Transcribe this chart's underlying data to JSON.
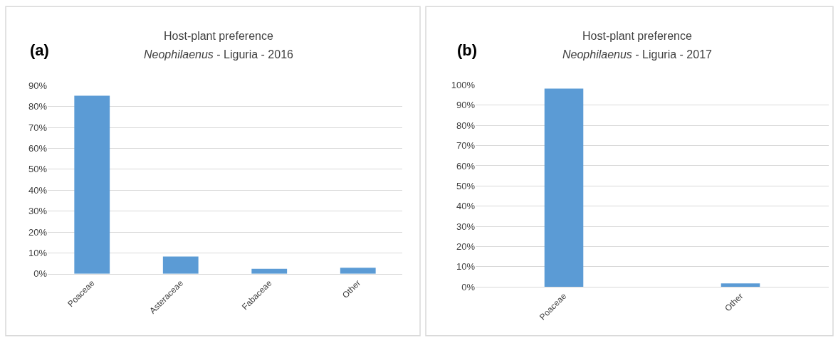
{
  "chart_data": [
    {
      "type": "bar",
      "title": "Host-plant preference",
      "subtitle": "Neophilaenus - Liguria - 2016",
      "annotations": [
        "(a)"
      ],
      "categories": [
        "Poaceae",
        "Asteraceae",
        "Fabaceae",
        "Other"
      ],
      "values": [
        85.2,
        8.3,
        2.4,
        2.9
      ],
      "color": "#5b9bd5",
      "ylim": [
        0,
        90
      ],
      "yticks": [
        {
          "value": 0,
          "label": "0%"
        },
        {
          "value": 10,
          "label": "10%"
        },
        {
          "value": 20,
          "label": "20%"
        },
        {
          "value": 30,
          "label": "30%"
        },
        {
          "value": 40,
          "label": "40%"
        },
        {
          "value": 50,
          "label": "50%"
        },
        {
          "value": 60,
          "label": "60%"
        },
        {
          "value": 70,
          "label": "70%"
        },
        {
          "value": 80,
          "label": "80%"
        },
        {
          "value": 90,
          "label": "90%"
        }
      ],
      "grid": "y"
    },
    {
      "type": "bar",
      "title": "Host-plant preference",
      "subtitle": "Neophilaenus - Liguria - 2017",
      "annotations": [
        "(b)"
      ],
      "categories": [
        "Poaceae",
        "Other"
      ],
      "values": [
        98.2,
        1.8
      ],
      "color": "#5b9bd5",
      "ylim": [
        0,
        100
      ],
      "yticks": [
        {
          "value": 0,
          "label": "0%"
        },
        {
          "value": 10,
          "label": "10%"
        },
        {
          "value": 20,
          "label": "20%"
        },
        {
          "value": 30,
          "label": "30%"
        },
        {
          "value": 40,
          "label": "40%"
        },
        {
          "value": 50,
          "label": "50%"
        },
        {
          "value": 60,
          "label": "60%"
        },
        {
          "value": 70,
          "label": "70%"
        },
        {
          "value": 80,
          "label": "80%"
        },
        {
          "value": 90,
          "label": "90%"
        },
        {
          "value": 100,
          "label": "100%"
        }
      ],
      "grid": "y"
    }
  ]
}
